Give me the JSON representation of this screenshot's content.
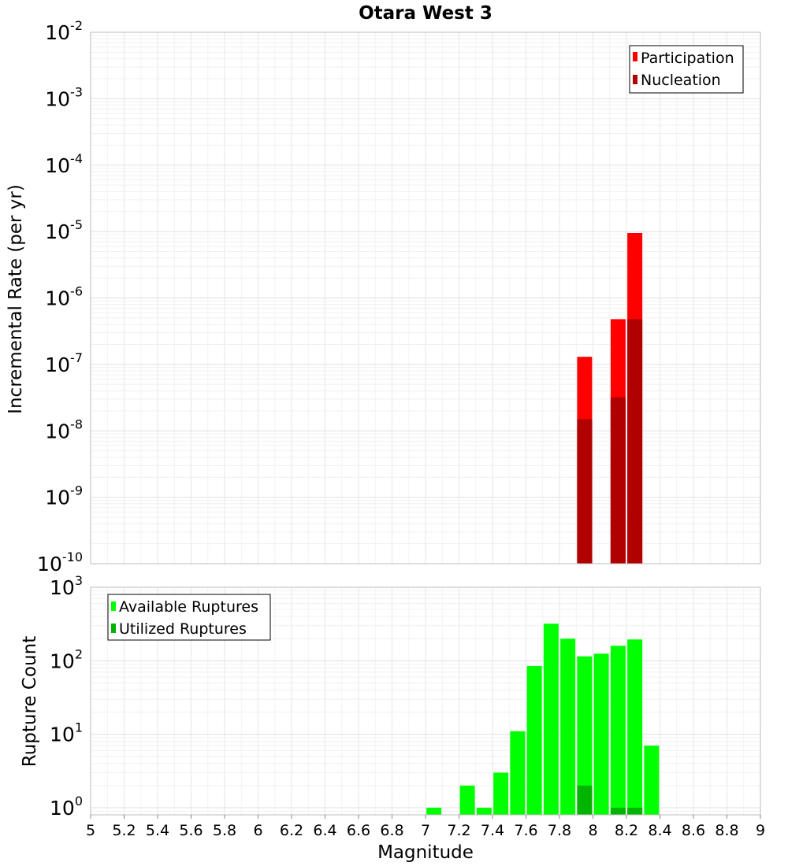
{
  "chart_data": [
    {
      "type": "bar",
      "title": "Otara West 3",
      "ylabel": "Incremental Rate (per yr)",
      "xlim": [
        5,
        9
      ],
      "ylim": [
        1e-10,
        0.01
      ],
      "yscale": "log",
      "y_tick_exponents": [
        "-10",
        "-9",
        "-8",
        "-7",
        "-6",
        "-5",
        "-4",
        "-3",
        "-2"
      ],
      "y_tick_base": "10",
      "legend_position": "top-right",
      "grid": true,
      "series": [
        {
          "name": "Participation",
          "color": "#ff0000",
          "x": [
            7.95,
            8.15,
            8.25
          ],
          "values": [
            1.3e-07,
            4.8e-07,
            9.5e-06
          ]
        },
        {
          "name": "Nucleation",
          "color": "#b00000",
          "x": [
            7.95,
            8.15,
            8.25
          ],
          "values": [
            1.5e-08,
            3.2e-08,
            4.8e-07
          ]
        }
      ]
    },
    {
      "type": "bar",
      "ylabel": "Rupture Count",
      "xlabel": "Magnitude",
      "xlim": [
        5,
        9
      ],
      "ylim": [
        0.8,
        1000
      ],
      "yscale": "log",
      "y_tick_exponents": [
        "0",
        "1",
        "2",
        "3"
      ],
      "y_tick_base": "10",
      "x_ticks": [
        "5",
        "5.2",
        "5.4",
        "5.6",
        "5.8",
        "6",
        "6.2",
        "6.4",
        "6.6",
        "6.8",
        "7",
        "7.2",
        "7.4",
        "7.6",
        "7.8",
        "8",
        "8.2",
        "8.4",
        "8.6",
        "8.8",
        "9"
      ],
      "legend_position": "top-left",
      "grid": true,
      "series": [
        {
          "name": "Available Ruptures",
          "color": "#00ff00",
          "x": [
            7.05,
            7.25,
            7.35,
            7.45,
            7.55,
            7.65,
            7.75,
            7.85,
            7.95,
            8.05,
            8.15,
            8.25,
            8.35
          ],
          "values": [
            1,
            2,
            1,
            3,
            11,
            85,
            320,
            200,
            115,
            125,
            160,
            195,
            7
          ]
        },
        {
          "name": "Utilized Ruptures",
          "color": "#00b400",
          "x": [
            7.95,
            8.15,
            8.25
          ],
          "values": [
            2,
            1,
            1
          ]
        }
      ]
    }
  ]
}
